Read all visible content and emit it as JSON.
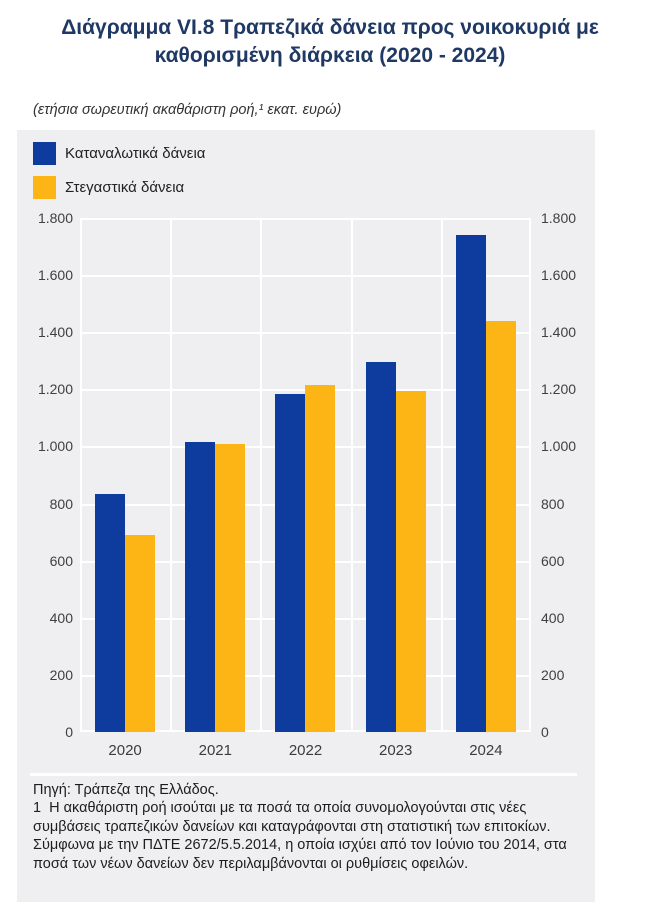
{
  "title": "Διάγραμμα VI.8 Τραπεζικά δάνεια προς νοικοκυριά με καθορισμένη διάρκεια (2020 - 2024)",
  "subtitle": "(ετήσια σωρευτική ακαθάριστη ροή,¹ εκατ. ευρώ)",
  "legend": [
    {
      "label": "Καταναλωτικά δάνεια",
      "color": "#0d3b9e"
    },
    {
      "label": "Στεγαστικά δάνεια",
      "color": "#fcb514"
    }
  ],
  "chart_data": {
    "type": "bar",
    "title": "Διάγραμμα VI.8 Τραπεζικά δάνεια προς νοικοκυριά με καθορισμένη διάρκεια (2020 - 2024)",
    "subtitle": "(ετήσια σωρευτική ακαθάριστη ροή, εκατ. ευρώ)",
    "categories": [
      "2020",
      "2021",
      "2022",
      "2023",
      "2024"
    ],
    "series": [
      {
        "name": "Καταναλωτικά δάνεια",
        "color": "#0d3b9e",
        "values": [
          835,
          1015,
          1185,
          1295,
          1740
        ]
      },
      {
        "name": "Στεγαστικά δάνεια",
        "color": "#fcb514",
        "values": [
          690,
          1010,
          1215,
          1195,
          1440
        ]
      }
    ],
    "xlabel": "",
    "ylabel": "εκατ. ευρώ",
    "ylim": [
      0,
      1800
    ],
    "ytick_step": 200,
    "ytick_labels": [
      "1.800",
      "1.600",
      "1.400",
      "1.200",
      "1.000",
      "800",
      "600",
      "400",
      "200",
      "0"
    ],
    "grid": true,
    "legend_position": "top-left",
    "panel_background": "#efeef0",
    "gridline_color": "#ffffff"
  },
  "footer": {
    "source": "Πηγή: Τράπεζα της Ελλάδος.",
    "note": "1  Η ακαθάριστη ροή ισούται με τα ποσά τα οποία συνομολογούνται στις νέες συμβάσεις τραπεζικών δανείων και καταγράφονται στη στατιστική των επιτοκίων. Σύμφωνα με την ΠΔΤΕ 2672/5.5.2014, η οποία ισχύει από τον Ιούνιο του 2014, στα ποσά των νέων δανείων δεν περιλαμβάνονται οι ρυθμίσεις οφειλών."
  }
}
